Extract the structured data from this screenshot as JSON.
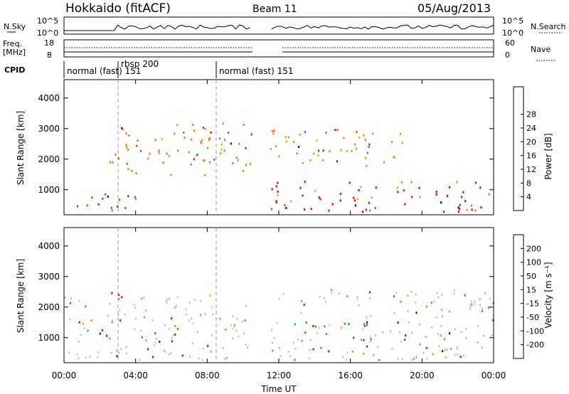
{
  "header": {
    "station": "Hokkaido (fitACF)",
    "beam": "Beam 11",
    "date": "05/Aug/2013"
  },
  "noise_panel": {
    "left_label": "N.Sky",
    "right_label": "N.Search",
    "left_ticks": [
      "10^5",
      "10^0"
    ],
    "right_ticks": [
      "10^5",
      "10^0"
    ]
  },
  "freq_panel": {
    "left_label_1": "Freq.",
    "left_label_2": "[MHz]",
    "right_label": "Nave",
    "left_ticks": [
      "18",
      "8"
    ],
    "right_ticks": [
      "60",
      "0"
    ]
  },
  "cpid_panel": {
    "label": "CPID",
    "modes": [
      {
        "text": "normal (fast) 151",
        "start_hour": 0.0
      },
      {
        "text": "rbsp 200",
        "start_hour": 3.0
      },
      {
        "text": "normal (fast) 151",
        "start_hour": 8.5
      }
    ]
  },
  "chart_data": [
    {
      "type": "heatmap",
      "name": "power",
      "ylabel": "Slant Range [km]",
      "ylim": [
        180,
        4600
      ],
      "yticks": [
        1000,
        2000,
        3000,
        4000
      ],
      "xlim": [
        0,
        24
      ],
      "data_gap_hours": [
        10.5,
        11.5
      ],
      "colorbar_label": "Power [dB]",
      "colorbar_ticks": [
        "4",
        "8",
        "12",
        "16",
        "20",
        "24",
        "28"
      ],
      "colorbar_colors": [
        "#0000ee",
        "#2255bb",
        "#338877",
        "#44aa55",
        "#88cc33",
        "#ddbb11",
        "#ff8800",
        "#ff4400",
        "#ee0000"
      ],
      "regions": [
        {
          "t0": 0.0,
          "t1": 4.5,
          "r0": 300,
          "r1": 900,
          "dominant": "#ff3300"
        },
        {
          "t0": 2.5,
          "t1": 10.5,
          "r0": 1500,
          "r1": 3200,
          "dominant": "#ff7700"
        },
        {
          "t0": 11.5,
          "t1": 24.0,
          "r0": 300,
          "r1": 1300,
          "dominant": "#ee0000"
        },
        {
          "t0": 11.5,
          "t1": 19.0,
          "r0": 1800,
          "r1": 3000,
          "dominant": "#ff8800"
        }
      ]
    },
    {
      "type": "heatmap",
      "name": "velocity",
      "ylabel": "Slant Range [km]",
      "ylim": [
        180,
        4600
      ],
      "yticks": [
        1000,
        2000,
        3000,
        4000
      ],
      "xlim": [
        0,
        24
      ],
      "xlabel": "Time UT",
      "xtick_labels": [
        "00:00",
        "04:00",
        "08:00",
        "12:00",
        "16:00",
        "20:00",
        "00:00"
      ],
      "data_gap_hours": [
        10.5,
        11.5
      ],
      "colorbar_label": "Velocity [m s⁻¹]",
      "colorbar_ticks": [
        "200",
        "100",
        "50",
        "15",
        "-15",
        "-50",
        "-100",
        "-200"
      ],
      "colorbar_colors": [
        "#1a1aaa",
        "#226622",
        "#33aa33",
        "#66cc44",
        "#bbbbbb",
        "#ffaa22",
        "#ff7700",
        "#ff3300",
        "#ee0000"
      ],
      "regions": [
        {
          "t0": 0.0,
          "t1": 10.5,
          "r0": 300,
          "r1": 2500,
          "dominant": "#c8c8c0"
        },
        {
          "t0": 11.5,
          "t1": 24.0,
          "r0": 300,
          "r1": 2600,
          "dominant": "#c8c8c0"
        },
        {
          "t0": 13.0,
          "t1": 17.0,
          "r0": 1200,
          "r1": 1600,
          "dominant": "#339933"
        }
      ]
    }
  ]
}
